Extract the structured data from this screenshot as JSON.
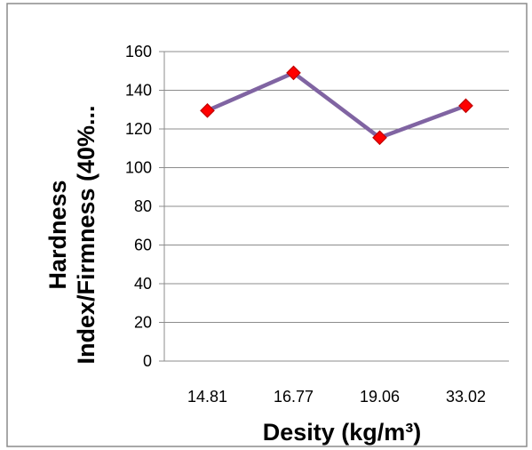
{
  "chart_data": {
    "type": "line",
    "title": "",
    "categories": [
      "14.81",
      "16.77",
      "19.06",
      "33.02"
    ],
    "series": [
      {
        "values": [
          129.5,
          149,
          115.5,
          132
        ],
        "color": "#8064A2",
        "marker": "diamond",
        "marker_color": "#FF0000"
      }
    ],
    "xlabel": "Desity (kg/m³)",
    "ylabel_line1": "Hardness",
    "ylabel_line2": "Index/Firmness (40%...",
    "ylim": [
      0,
      160
    ],
    "yticks": [
      "0",
      "20",
      "40",
      "60",
      "80",
      "100",
      "120",
      "140",
      "160"
    ],
    "grid": true,
    "legend": "none"
  },
  "colors": {
    "gridline": "#8C8C8C",
    "border": "#8C8C8C",
    "line": "#8064A2",
    "marker_fill": "#FF0000",
    "marker_stroke": "#C00000"
  }
}
